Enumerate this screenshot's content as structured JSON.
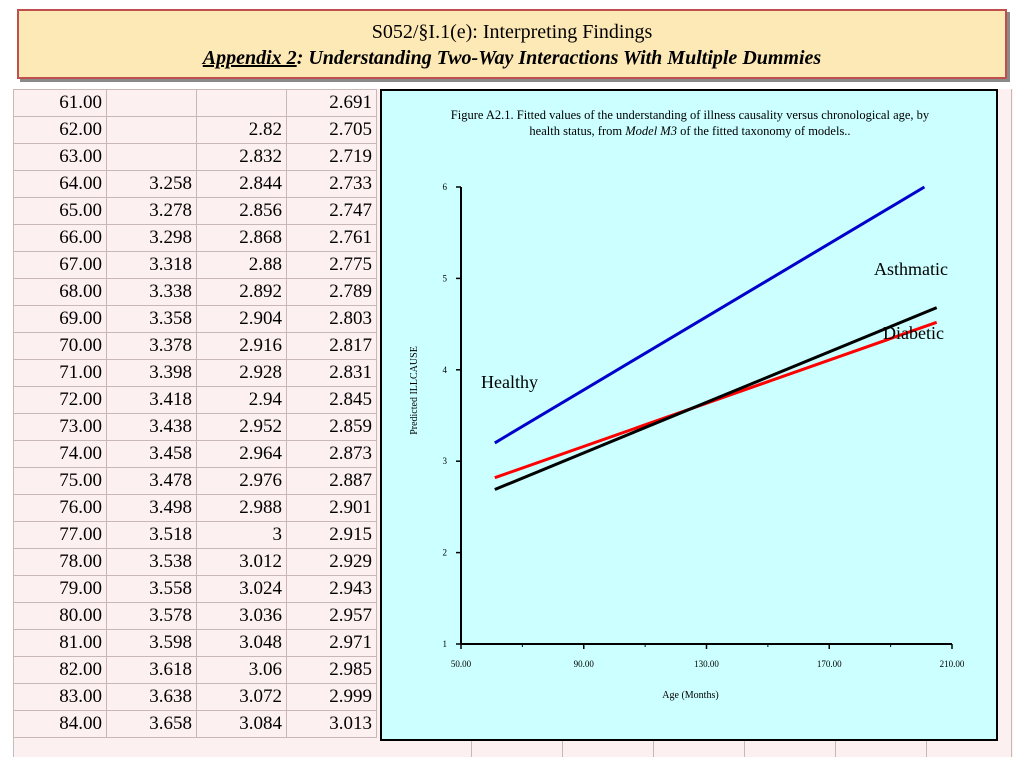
{
  "header": {
    "line1": "S052/§I.1(e): Interpreting Findings",
    "line2_underlined": "Appendix 2",
    "line2_rest": ": Understanding Two-Way Interactions With Multiple Dummies"
  },
  "table": {
    "rows": [
      [
        "61.00",
        "",
        "",
        "2.691"
      ],
      [
        "62.00",
        "",
        "2.82",
        "2.705"
      ],
      [
        "63.00",
        "",
        "2.832",
        "2.719"
      ],
      [
        "64.00",
        "3.258",
        "2.844",
        "2.733"
      ],
      [
        "65.00",
        "3.278",
        "2.856",
        "2.747"
      ],
      [
        "66.00",
        "3.298",
        "2.868",
        "2.761"
      ],
      [
        "67.00",
        "3.318",
        "2.88",
        "2.775"
      ],
      [
        "68.00",
        "3.338",
        "2.892",
        "2.789"
      ],
      [
        "69.00",
        "3.358",
        "2.904",
        "2.803"
      ],
      [
        "70.00",
        "3.378",
        "2.916",
        "2.817"
      ],
      [
        "71.00",
        "3.398",
        "2.928",
        "2.831"
      ],
      [
        "72.00",
        "3.418",
        "2.94",
        "2.845"
      ],
      [
        "73.00",
        "3.438",
        "2.952",
        "2.859"
      ],
      [
        "74.00",
        "3.458",
        "2.964",
        "2.873"
      ],
      [
        "75.00",
        "3.478",
        "2.976",
        "2.887"
      ],
      [
        "76.00",
        "3.498",
        "2.988",
        "2.901"
      ],
      [
        "77.00",
        "3.518",
        "3",
        "2.915"
      ],
      [
        "78.00",
        "3.538",
        "3.012",
        "2.929"
      ],
      [
        "79.00",
        "3.558",
        "3.024",
        "2.943"
      ],
      [
        "80.00",
        "3.578",
        "3.036",
        "2.957"
      ],
      [
        "81.00",
        "3.598",
        "3.048",
        "2.971"
      ],
      [
        "82.00",
        "3.618",
        "3.06",
        "2.985"
      ],
      [
        "83.00",
        "3.638",
        "3.072",
        "2.999"
      ],
      [
        "84.00",
        "3.658",
        "3.084",
        "3.013"
      ]
    ]
  },
  "chart_data": {
    "type": "line",
    "title_part1": "Figure A2.1.  Fitted values of the understanding of illness causality versus chronological age, by health status, from ",
    "title_model": "Model M3",
    "title_part2": " of the fitted taxonomy of models..",
    "xlabel": "Age (Months)",
    "ylabel": "Predicted ILLCAUSE",
    "xlim": [
      50,
      210
    ],
    "ylim": [
      1,
      6
    ],
    "xticks": [
      "50.00",
      "90.00",
      "130.00",
      "170.00",
      "210.00"
    ],
    "yticks": [
      "1",
      "2",
      "3",
      "4",
      "5",
      "6"
    ],
    "grid": false,
    "series": [
      {
        "name": "Asthmatic",
        "color": "#0000cc",
        "x": [
          61,
          201
        ],
        "y": [
          3.2,
          6.0
        ]
      },
      {
        "name": "Diabetic",
        "color": "#ff0000",
        "x": [
          61,
          205
        ],
        "y": [
          2.82,
          4.52
        ]
      },
      {
        "name": "Healthy",
        "color": "#000000",
        "x": [
          61,
          205
        ],
        "y": [
          2.69,
          4.68
        ]
      }
    ]
  }
}
